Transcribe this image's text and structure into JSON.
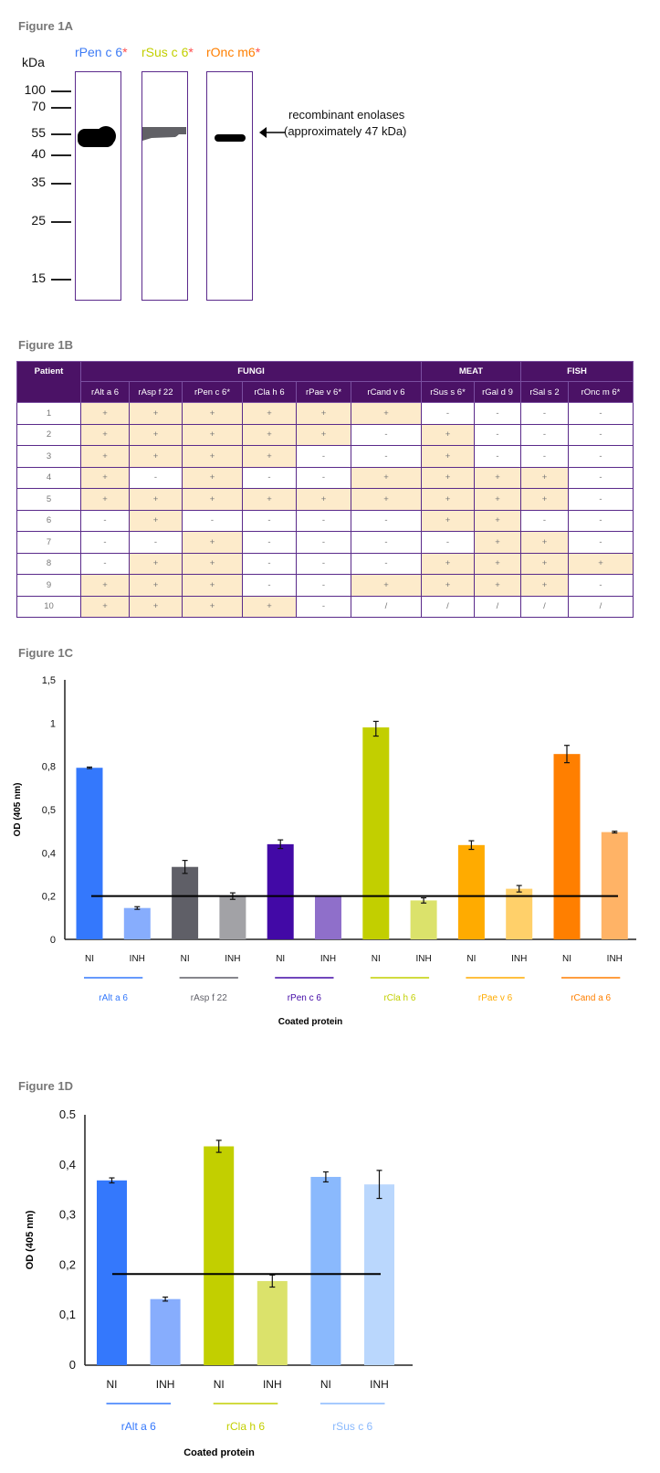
{
  "figure_1a": {
    "title": "Figure 1A",
    "unit_label": "kDa",
    "lanes": [
      {
        "name": "rPen c 6",
        "star": "*",
        "color": "#3d7bf5"
      },
      {
        "name": "rSus c 6",
        "star": "*",
        "color": "#c2cf00"
      },
      {
        "name": "rOnc m6",
        "star": "*",
        "color": "#ff7f00"
      }
    ],
    "markers": [
      "100",
      "70",
      "55",
      "40",
      "35",
      "25",
      "15"
    ],
    "annotation_line1": "recombinant enolases",
    "annotation_line2": "(approximately 47 kDa)"
  },
  "figure_1b": {
    "title": "Figure 1B",
    "patient_header": "Patient",
    "groups": [
      {
        "label": "FUNGI",
        "span": 6
      },
      {
        "label": "MEAT",
        "span": 2
      },
      {
        "label": "FISH",
        "span": 2
      }
    ],
    "columns": [
      "rAlt a 6",
      "rAsp f 22",
      "rPen c 6*",
      "rCla h 6",
      "rPae v 6*",
      "rCand v 6",
      "rSus s 6*",
      "rGal d 9",
      "rSal s 2",
      "rOnc m 6*"
    ],
    "rows": [
      {
        "patient": "1",
        "values": [
          "+",
          "+",
          "+",
          "+",
          "+",
          "+",
          "-",
          "-",
          "-",
          "-"
        ]
      },
      {
        "patient": "2",
        "values": [
          "+",
          "+",
          "+",
          "+",
          "+",
          "-",
          "+",
          "-",
          "-",
          "-"
        ]
      },
      {
        "patient": "3",
        "values": [
          "+",
          "+",
          "+",
          "+",
          "-",
          "-",
          "+",
          "-",
          "-",
          "-"
        ]
      },
      {
        "patient": "4",
        "values": [
          "+",
          "-",
          "+",
          "-",
          "-",
          "+",
          "+",
          "+",
          "+",
          "-"
        ]
      },
      {
        "patient": "5",
        "values": [
          "+",
          "+",
          "+",
          "+",
          "+",
          "+",
          "+",
          "+",
          "+",
          "-"
        ]
      },
      {
        "patient": "6",
        "values": [
          "-",
          "+",
          "-",
          "-",
          "-",
          "-",
          "+",
          "+",
          "-",
          "-"
        ]
      },
      {
        "patient": "7",
        "values": [
          "-",
          "-",
          "+",
          "-",
          "-",
          "-",
          "-",
          "+",
          "+",
          "-"
        ]
      },
      {
        "patient": "8",
        "values": [
          "-",
          "+",
          "+",
          "-",
          "-",
          "-",
          "+",
          "+",
          "+",
          "+"
        ]
      },
      {
        "patient": "9",
        "values": [
          "+",
          "+",
          "+",
          "-",
          "-",
          "+",
          "+",
          "+",
          "+",
          "-"
        ]
      },
      {
        "patient": "10",
        "values": [
          "+",
          "+",
          "+",
          "+",
          "-",
          "/",
          "/",
          "/",
          "/",
          "/"
        ]
      }
    ],
    "colors": {
      "header": "#4b1266",
      "positive_fill": "#fdebcb",
      "border": "#5a2a8a"
    }
  },
  "chart_data": [
    {
      "id": "figure_1c",
      "title": "Figure 1C",
      "type": "bar",
      "ylabel": "OD (405 nm)",
      "xlabel": "Coated protein",
      "yticks": [
        "0",
        "0,2",
        "0,4",
        "0,5",
        "0,8",
        "1",
        "1,5"
      ],
      "ytick_values": [
        0,
        0.2,
        0.4,
        0.5,
        0.8,
        1,
        1.5
      ],
      "threshold": 0.2,
      "conditions": [
        "NI",
        "INH"
      ],
      "groups": [
        {
          "name": "rAlt a 6",
          "colors": [
            "#3478fc",
            "#87adfd"
          ],
          "values": [
            0.79,
            0.145
          ],
          "errors": [
            0.005,
            0.006
          ]
        },
        {
          "name": "rAsp f 22",
          "colors": [
            "#5f5f67",
            "#a2a2a6"
          ],
          "values": [
            0.335,
            0.2
          ],
          "errors": [
            0.03,
            0.015
          ]
        },
        {
          "name": "rPen c 6",
          "colors": [
            "#4209a6",
            "#8f6fca"
          ],
          "values": [
            0.42,
            0.2
          ],
          "errors": [
            0.01,
            0
          ]
        },
        {
          "name": "rCla h 6",
          "colors": [
            "#c2cf00",
            "#dbe26b"
          ],
          "values": [
            0.98,
            0.18
          ],
          "errors": [
            0.04,
            0.012
          ]
        },
        {
          "name": "rPae v 6",
          "colors": [
            "#ffab00",
            "#ffd06a"
          ],
          "values": [
            0.418,
            0.234
          ],
          "errors": [
            0.01,
            0.015
          ]
        },
        {
          "name": "rCand a 6",
          "colors": [
            "#ff7f00",
            "#ffb366"
          ],
          "values": [
            0.857,
            0.448
          ],
          "errors": [
            0.04,
            0.002
          ]
        }
      ]
    },
    {
      "id": "figure_1d",
      "title": "Figure 1D",
      "type": "bar",
      "ylabel": "OD (405 nm)",
      "xlabel": "Coated protein",
      "yticks": [
        "0",
        "0,1",
        "0,2",
        "0,3",
        "0,4",
        "0.5"
      ],
      "ytick_values": [
        0,
        0.1,
        0.2,
        0.3,
        0.4,
        0.5
      ],
      "threshold": 0.182,
      "conditions": [
        "NI",
        "INH"
      ],
      "groups": [
        {
          "name": "rAlt a 6",
          "colors": [
            "#3478fc",
            "#87adfd"
          ],
          "values": [
            0.369,
            0.132
          ],
          "errors": [
            0.005,
            0.004
          ]
        },
        {
          "name": "rCla h 6",
          "colors": [
            "#c2cf00",
            "#dbe26b"
          ],
          "values": [
            0.437,
            0.168
          ],
          "errors": [
            0.012,
            0.012
          ]
        },
        {
          "name": "rSus c 6",
          "colors": [
            "#8ab9fd",
            "#bad7fd"
          ],
          "values": [
            0.376,
            0.361
          ],
          "errors": [
            0.01,
            0.028
          ]
        }
      ]
    }
  ]
}
